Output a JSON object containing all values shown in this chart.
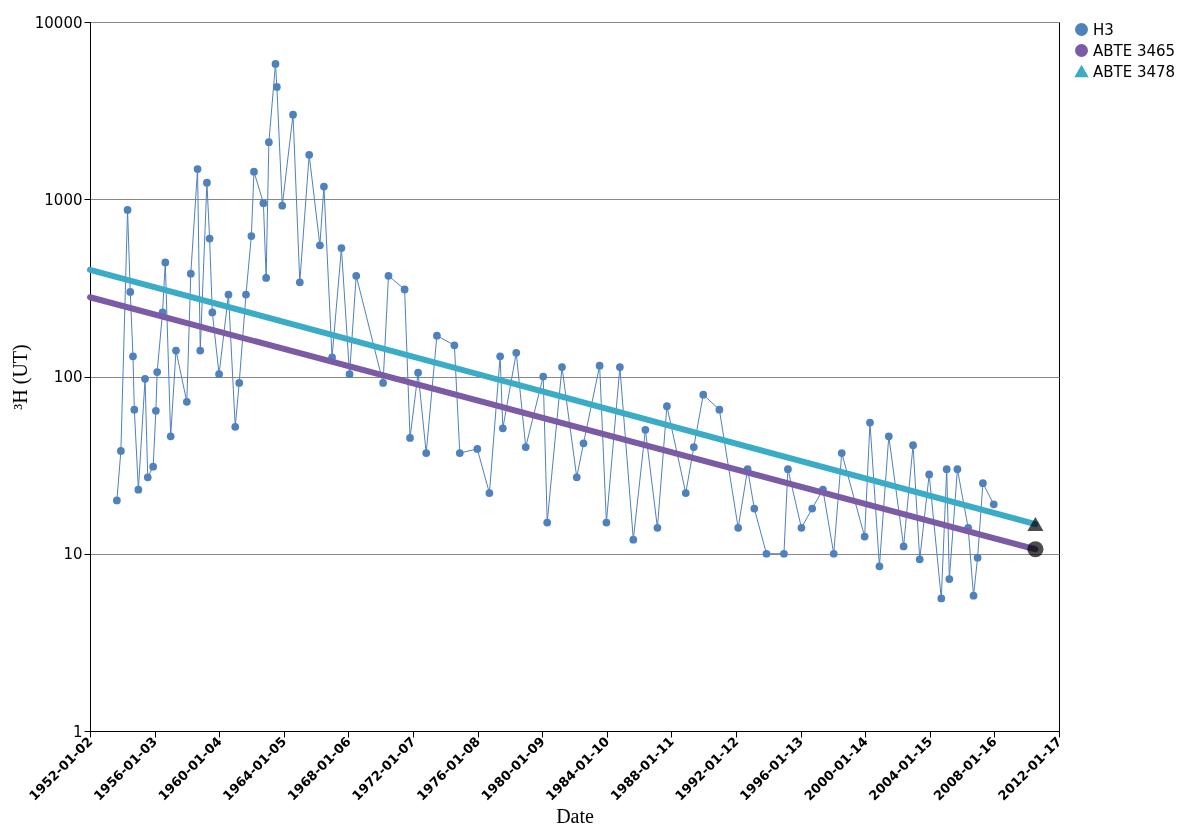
{
  "chart_data": {
    "type": "line",
    "xlabel": "Date",
    "ylabel": "³H (UT)",
    "log": "y",
    "grid": "y",
    "legend": "right",
    "xlim": [
      "1952-01-02",
      "2012-01-17"
    ],
    "xticks": [
      {
        "value": "1952-01-02",
        "label": "1952-01-02"
      },
      {
        "value": "1956-01-03",
        "label": "1956-01-03"
      },
      {
        "value": "1960-01-04",
        "label": "1960-01-04"
      },
      {
        "value": "1964-01-05",
        "label": "1964-01-05"
      },
      {
        "value": "1968-01-06",
        "label": "1968-01-06"
      },
      {
        "value": "1972-01-07",
        "label": "1972-01-07"
      },
      {
        "value": "1976-01-08",
        "label": "1976-01-08"
      },
      {
        "value": "1980-01-09",
        "label": "1980-01-09"
      },
      {
        "value": "1984-01-10",
        "label": "1984-01-10"
      },
      {
        "value": "1988-01-11",
        "label": "1988-01-11"
      },
      {
        "value": "1992-01-12",
        "label": "1992-01-12"
      },
      {
        "value": "1996-01-13",
        "label": "1996-01-13"
      },
      {
        "value": "2000-01-14",
        "label": "2000-01-14"
      },
      {
        "value": "2004-01-15",
        "label": "2004-01-15"
      },
      {
        "value": "2008-01-16",
        "label": "2008-01-16"
      },
      {
        "value": "2012-01-17",
        "label": "2012-01-17"
      }
    ],
    "ylim": [
      1,
      10000
    ],
    "yticks": [
      1,
      10,
      100,
      1000,
      10000
    ],
    "series": [
      {
        "name": "H3",
        "marker": "circle",
        "color": "#4f81bd",
        "x": [
          "1953-09",
          "1953-12",
          "1954-05",
          "1954-07",
          "1954-09",
          "1954-10",
          "1955-01",
          "1955-06",
          "1955-08",
          "1955-12",
          "1956-02",
          "1956-03",
          "1956-07",
          "1956-09",
          "1957-01",
          "1957-05",
          "1958-01",
          "1958-04",
          "1958-09",
          "1958-11",
          "1959-04",
          "1959-06",
          "1959-08",
          "1960-01",
          "1960-08",
          "1961-01",
          "1961-04",
          "1961-09",
          "1962-01",
          "1962-03",
          "1962-10",
          "1962-12",
          "1963-02",
          "1963-07",
          "1963-08",
          "1963-12",
          "1964-08",
          "1965-01",
          "1965-08",
          "1966-04",
          "1966-07",
          "1967-01",
          "1967-08",
          "1968-02",
          "1968-07",
          "1970-03",
          "1970-07",
          "1971-07",
          "1971-11",
          "1972-05",
          "1972-11",
          "1973-07",
          "1974-08",
          "1974-12",
          "1976-01",
          "1976-10",
          "1977-06",
          "1977-08",
          "1978-06",
          "1979-01",
          "1980-02",
          "1980-05",
          "1981-04",
          "1982-03",
          "1982-08",
          "1983-08",
          "1984-01",
          "1984-11",
          "1985-09",
          "1986-06",
          "1987-03",
          "1987-10",
          "1988-12",
          "1989-06",
          "1990-01",
          "1991-01",
          "1992-03",
          "1992-10",
          "1993-03",
          "1993-12",
          "1995-01",
          "1995-04",
          "1996-02",
          "1996-10",
          "1997-06",
          "1998-02",
          "1998-08",
          "2000-01",
          "2000-05",
          "2000-12",
          "2001-07",
          "2002-06",
          "2003-01",
          "2003-06",
          "2004-01",
          "2004-10",
          "2005-02",
          "2005-04",
          "2005-10",
          "2006-06",
          "2006-10",
          "2007-01",
          "2007-05",
          "2008-01"
        ],
        "values": [
          20,
          38,
          870,
          300,
          130,
          65,
          23,
          97,
          27,
          31,
          64,
          106,
          230,
          440,
          46,
          140,
          72,
          380,
          1480,
          140,
          1240,
          600,
          230,
          103,
          290,
          52,
          92,
          290,
          620,
          1430,
          950,
          360,
          2100,
          5800,
          4300,
          920,
          3000,
          340,
          1780,
          550,
          1180,
          128,
          530,
          103,
          370,
          92,
          370,
          310,
          45,
          105,
          37,
          170,
          150,
          37,
          39,
          22,
          130,
          51,
          136,
          40,
          100,
          15,
          113,
          27,
          42,
          115,
          15,
          113,
          12,
          50,
          14,
          68,
          22,
          40,
          79,
          65,
          14,
          30,
          18,
          10,
          10,
          30,
          14,
          18,
          23,
          10,
          37,
          12.5,
          55,
          8.5,
          46,
          11,
          41,
          9.3,
          28,
          5.6,
          30,
          7.2,
          30,
          14,
          5.8,
          9.5,
          25,
          19
        ]
      },
      {
        "name": "ABTE 3465",
        "marker": "circle",
        "color": "#7b5aa6",
        "x": [
          "1952-01-02",
          "2010-08"
        ],
        "values": [
          280,
          10.6
        ]
      },
      {
        "name": "ABTE 3478",
        "marker": "triangle",
        "color": "#3aacc8",
        "x": [
          "1952-01-02",
          "2010-08"
        ],
        "values": [
          400,
          14.7
        ]
      }
    ]
  }
}
